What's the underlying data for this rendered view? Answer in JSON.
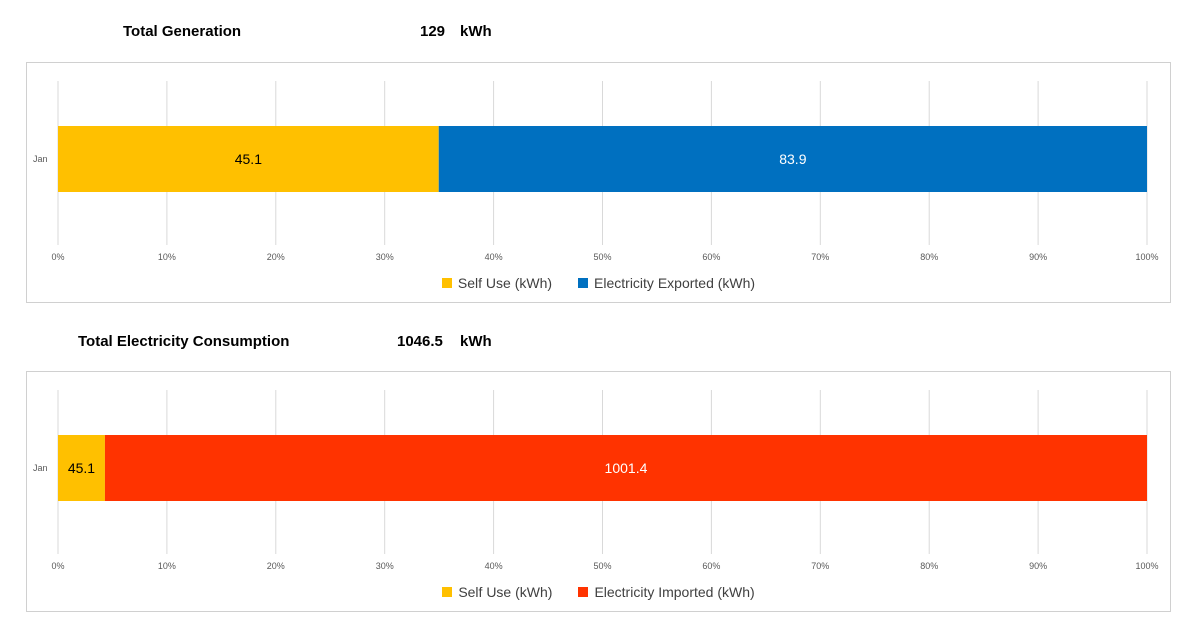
{
  "generation": {
    "heading_label": "Total Generation",
    "total_value": "129",
    "total_unit": "kWh"
  },
  "consumption": {
    "heading_label": "Total Electricity Consumption",
    "total_value": "1046.5",
    "total_unit": "kWh"
  },
  "chart_data": [
    {
      "type": "bar",
      "orientation": "horizontal",
      "stacking": "percent",
      "categories": [
        "Jan"
      ],
      "series": [
        {
          "name": "Self Use (kWh)",
          "values": [
            45.1
          ],
          "color": "#FFC000",
          "label_color": "#000000"
        },
        {
          "name": "Electricity Exported (kWh)",
          "values": [
            83.9
          ],
          "color": "#0070C0",
          "label_color": "#FFFFFF"
        }
      ],
      "x_ticks": [
        "0%",
        "10%",
        "20%",
        "30%",
        "40%",
        "50%",
        "60%",
        "70%",
        "80%",
        "90%",
        "100%"
      ],
      "xlim": [
        0,
        100
      ],
      "grid": true,
      "legend": "bottom"
    },
    {
      "type": "bar",
      "orientation": "horizontal",
      "stacking": "percent",
      "categories": [
        "Jan"
      ],
      "series": [
        {
          "name": "Self Use (kWh)",
          "values": [
            45.1
          ],
          "color": "#FFC000",
          "label_color": "#000000"
        },
        {
          "name": "Electricity Imported (kWh)",
          "values": [
            1001.4
          ],
          "color": "#FF3300",
          "label_color": "#FFFFFF"
        }
      ],
      "x_ticks": [
        "0%",
        "10%",
        "20%",
        "30%",
        "40%",
        "50%",
        "60%",
        "70%",
        "80%",
        "90%",
        "100%"
      ],
      "xlim": [
        0,
        100
      ],
      "grid": true,
      "legend": "bottom"
    }
  ]
}
